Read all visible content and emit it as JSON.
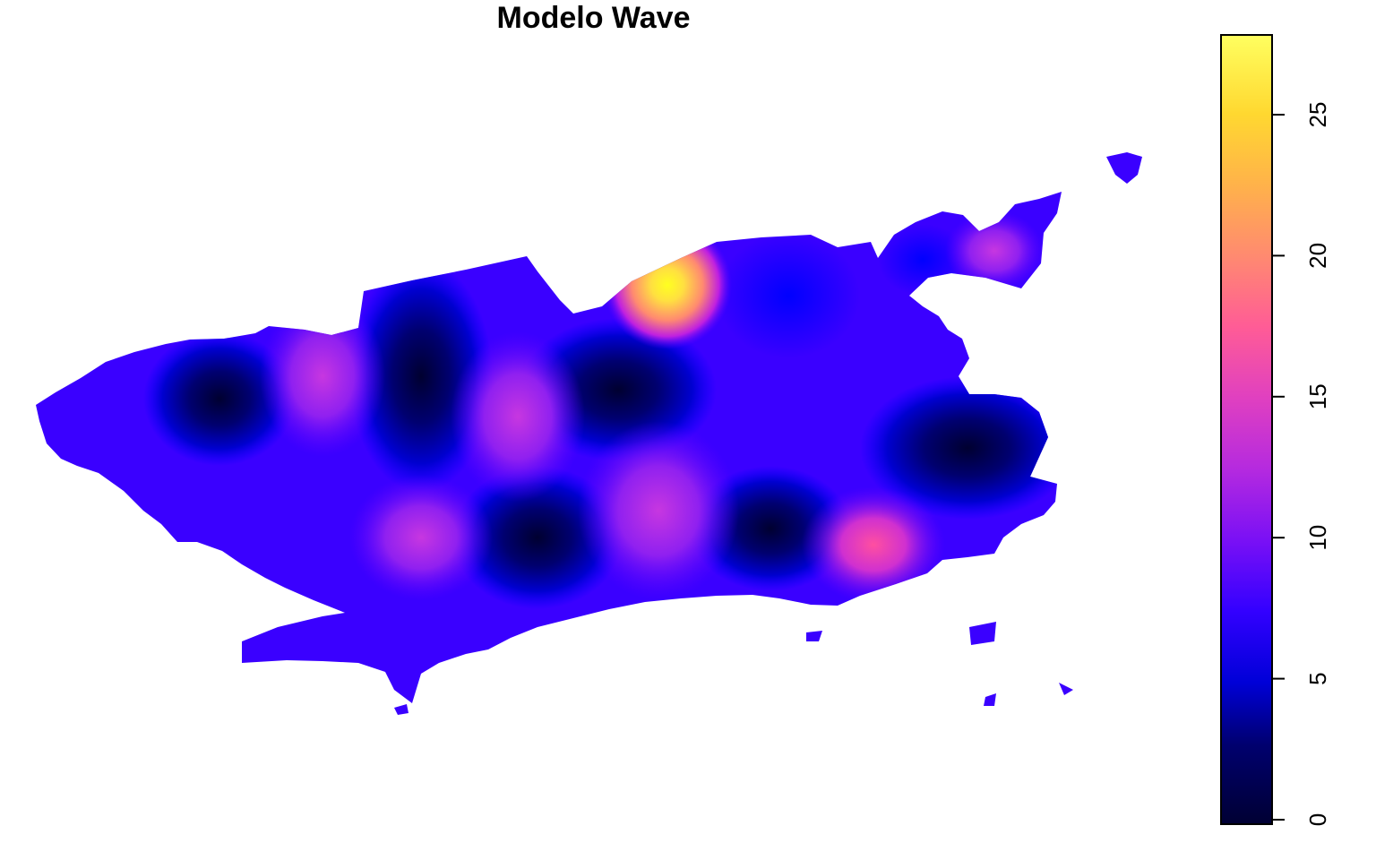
{
  "title": "Modelo Wave",
  "map": {
    "region": "Rio de Janeiro municipality",
    "colormap": [
      "#000033",
      "#0000E0",
      "#5D00FF",
      "#C729D6",
      "#FF6E87",
      "#FFB746",
      "#FFFF60"
    ],
    "hotspots": [
      {
        "label": "north-central peak",
        "value": 27
      },
      {
        "label": "east-south peak",
        "value": 17
      },
      {
        "label": "central-west peak",
        "value": 14
      },
      {
        "label": "central-south peak",
        "value": 12
      },
      {
        "label": "north-east inlet",
        "value": 13
      },
      {
        "label": "west peak",
        "value": 12
      }
    ]
  },
  "legend": {
    "min": 0,
    "max": 28,
    "ticks": [
      "0",
      "5",
      "10",
      "15",
      "20",
      "25"
    ],
    "tick_values": [
      0,
      5,
      10,
      15,
      20,
      25
    ]
  }
}
